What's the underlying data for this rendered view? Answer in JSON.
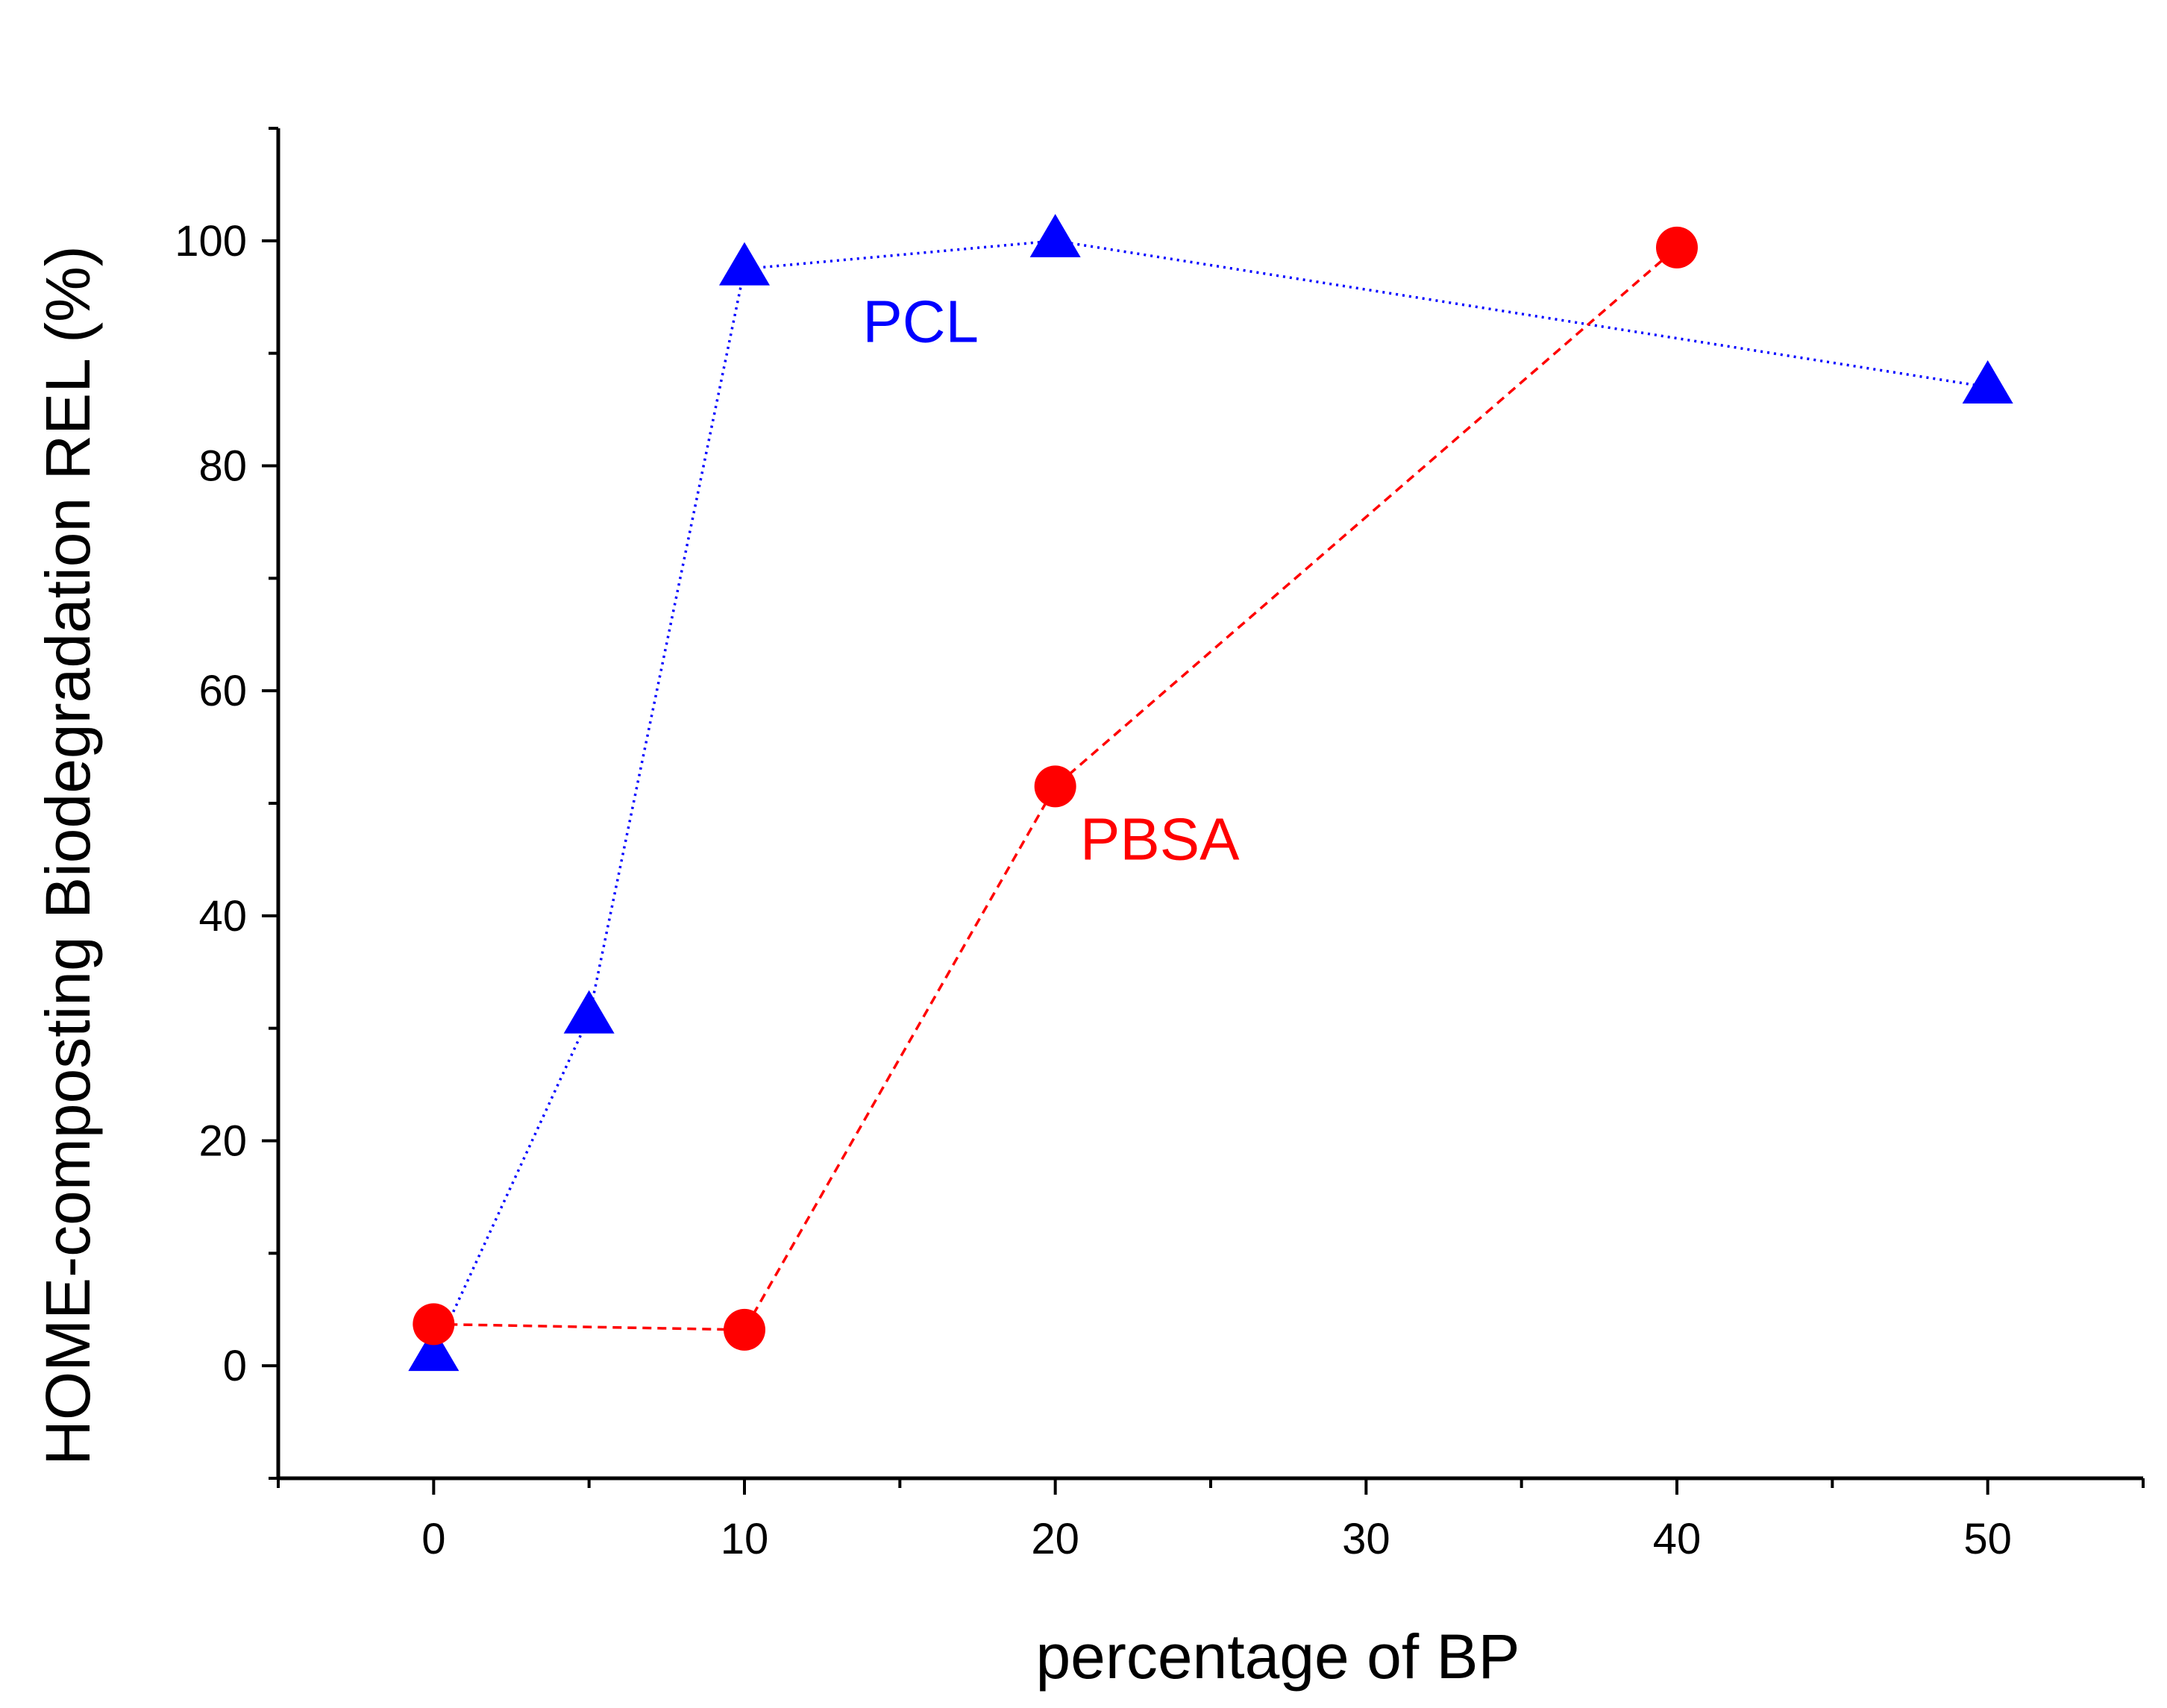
{
  "chart_data": {
    "type": "scatter",
    "title": "",
    "xlabel": "percentage of BP",
    "ylabel": "HOME-composting Biodegradation REL (%)",
    "xlim": [
      -5,
      55
    ],
    "ylim": [
      -10,
      110
    ],
    "xticks": [
      0,
      10,
      20,
      30,
      40,
      50
    ],
    "yticks": [
      0,
      20,
      40,
      60,
      80,
      100
    ],
    "grid": false,
    "series": [
      {
        "name": "PCL",
        "color": "#0000ff",
        "marker": "triangle",
        "line_style": "dotted",
        "label_anchor": [
          13.8,
          91
        ],
        "x": [
          0,
          5,
          10,
          20,
          50
        ],
        "y": [
          1,
          31,
          97.5,
          100,
          87
        ]
      },
      {
        "name": "PBSA",
        "color": "#ff0000",
        "marker": "circle",
        "line_style": "dashed",
        "label_anchor": [
          20.8,
          45
        ],
        "x": [
          0,
          10,
          20,
          40
        ],
        "y": [
          3.7,
          3.2,
          51.5,
          99.4
        ]
      }
    ]
  }
}
